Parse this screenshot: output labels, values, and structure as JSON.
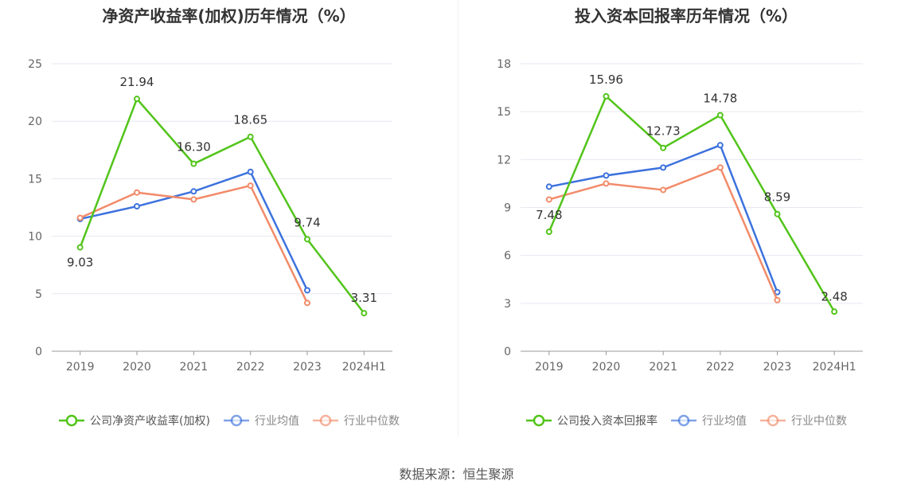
{
  "source_label": "数据来源：恒生聚源",
  "chart_data": [
    {
      "type": "line",
      "title": "净资产收益率(加权)历年情况（%）",
      "categories": [
        "2019",
        "2020",
        "2021",
        "2022",
        "2023",
        "2024H1"
      ],
      "ylim": [
        0,
        25
      ],
      "yticks": [
        0,
        5,
        10,
        15,
        20,
        25
      ],
      "grid": true,
      "legend_position": "bottom",
      "series": [
        {
          "name": "公司净资产收益率(加权)",
          "color": "#52c41a",
          "labels": true,
          "values": [
            9.03,
            21.94,
            16.3,
            18.65,
            9.74,
            3.31
          ],
          "value_labels": [
            "9.03",
            "21.94",
            "16.30",
            "18.65",
            "9.74",
            "3.31"
          ]
        },
        {
          "name": "行业均值",
          "color": "#3d72dd",
          "labels": false,
          "values": [
            11.5,
            12.6,
            13.9,
            15.6,
            5.3,
            null
          ]
        },
        {
          "name": "行业中位数",
          "color": "#f28b6a",
          "labels": false,
          "values": [
            11.6,
            13.8,
            13.2,
            14.4,
            4.2,
            null
          ]
        }
      ]
    },
    {
      "type": "line",
      "title": "投入资本回报率历年情况（%）",
      "categories": [
        "2019",
        "2020",
        "2021",
        "2022",
        "2023",
        "2024H1"
      ],
      "ylim": [
        0,
        18
      ],
      "yticks": [
        0,
        3,
        6,
        9,
        12,
        15,
        18
      ],
      "grid": true,
      "legend_position": "bottom",
      "series": [
        {
          "name": "公司投入资本回报率",
          "color": "#52c41a",
          "labels": true,
          "values": [
            7.48,
            15.96,
            12.73,
            14.78,
            8.59,
            2.48
          ],
          "value_labels": [
            "7.48",
            "15.96",
            "12.73",
            "14.78",
            "8.59",
            "2.48"
          ]
        },
        {
          "name": "行业均值",
          "color": "#3d72dd",
          "labels": false,
          "values": [
            10.3,
            11.0,
            11.5,
            12.9,
            3.7,
            null
          ]
        },
        {
          "name": "行业中位数",
          "color": "#f28b6a",
          "labels": false,
          "values": [
            9.5,
            10.5,
            10.1,
            11.5,
            3.2,
            null
          ]
        }
      ]
    }
  ]
}
